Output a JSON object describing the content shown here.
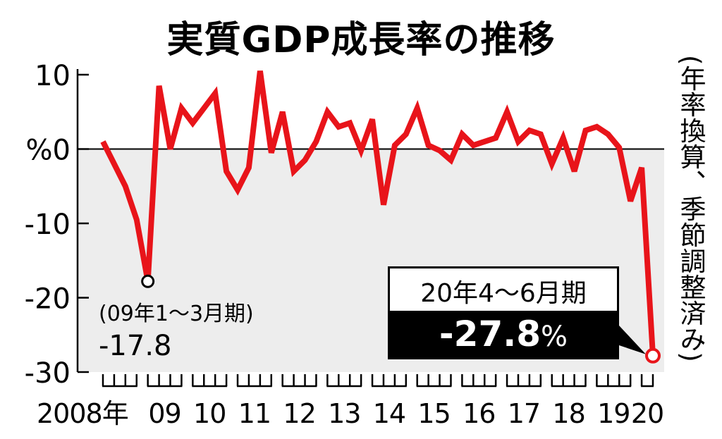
{
  "chart_data": {
    "type": "line",
    "title": "実質GDP成長率の推移",
    "unit": "%",
    "note": "(年率換算、季節調整済み)",
    "ylim": [
      -30,
      10
    ],
    "yticks": [
      10,
      0,
      -10,
      -20,
      -30
    ],
    "ytick_labels": [
      "10",
      "%0",
      "-10",
      "-20",
      "-30"
    ],
    "x_labels": [
      "2008年",
      "09",
      "10",
      "11",
      "12",
      "13",
      "14",
      "15",
      "16",
      "17",
      "18",
      "19",
      "20"
    ],
    "series": [
      {
        "values": [
          1,
          -2,
          -5,
          -9.5,
          -17.8,
          8.5,
          0,
          5.5,
          3.5,
          5.5,
          7.5,
          -3,
          -5.5,
          -2.5,
          10.5,
          -0.5,
          5,
          -3,
          -1.5,
          1,
          5,
          3,
          3.5,
          -0.2,
          4,
          -7.5,
          0.5,
          2,
          5.5,
          0.5,
          -0.2,
          -1.5,
          2,
          0.5,
          1,
          1.5,
          5,
          1,
          2.5,
          2,
          -2,
          1.5,
          -3,
          2.5,
          3,
          2,
          0.2,
          -7,
          -2.5,
          -27.8
        ],
        "color": "#e8141a"
      }
    ],
    "annotations": [
      {
        "period": "(09年1～3月期)",
        "value": "-17.8"
      },
      {
        "period": "20年4～6月期",
        "value": "-27.8",
        "unit": "%"
      }
    ],
    "negative_area_fill": "#ededed",
    "grid": false
  }
}
